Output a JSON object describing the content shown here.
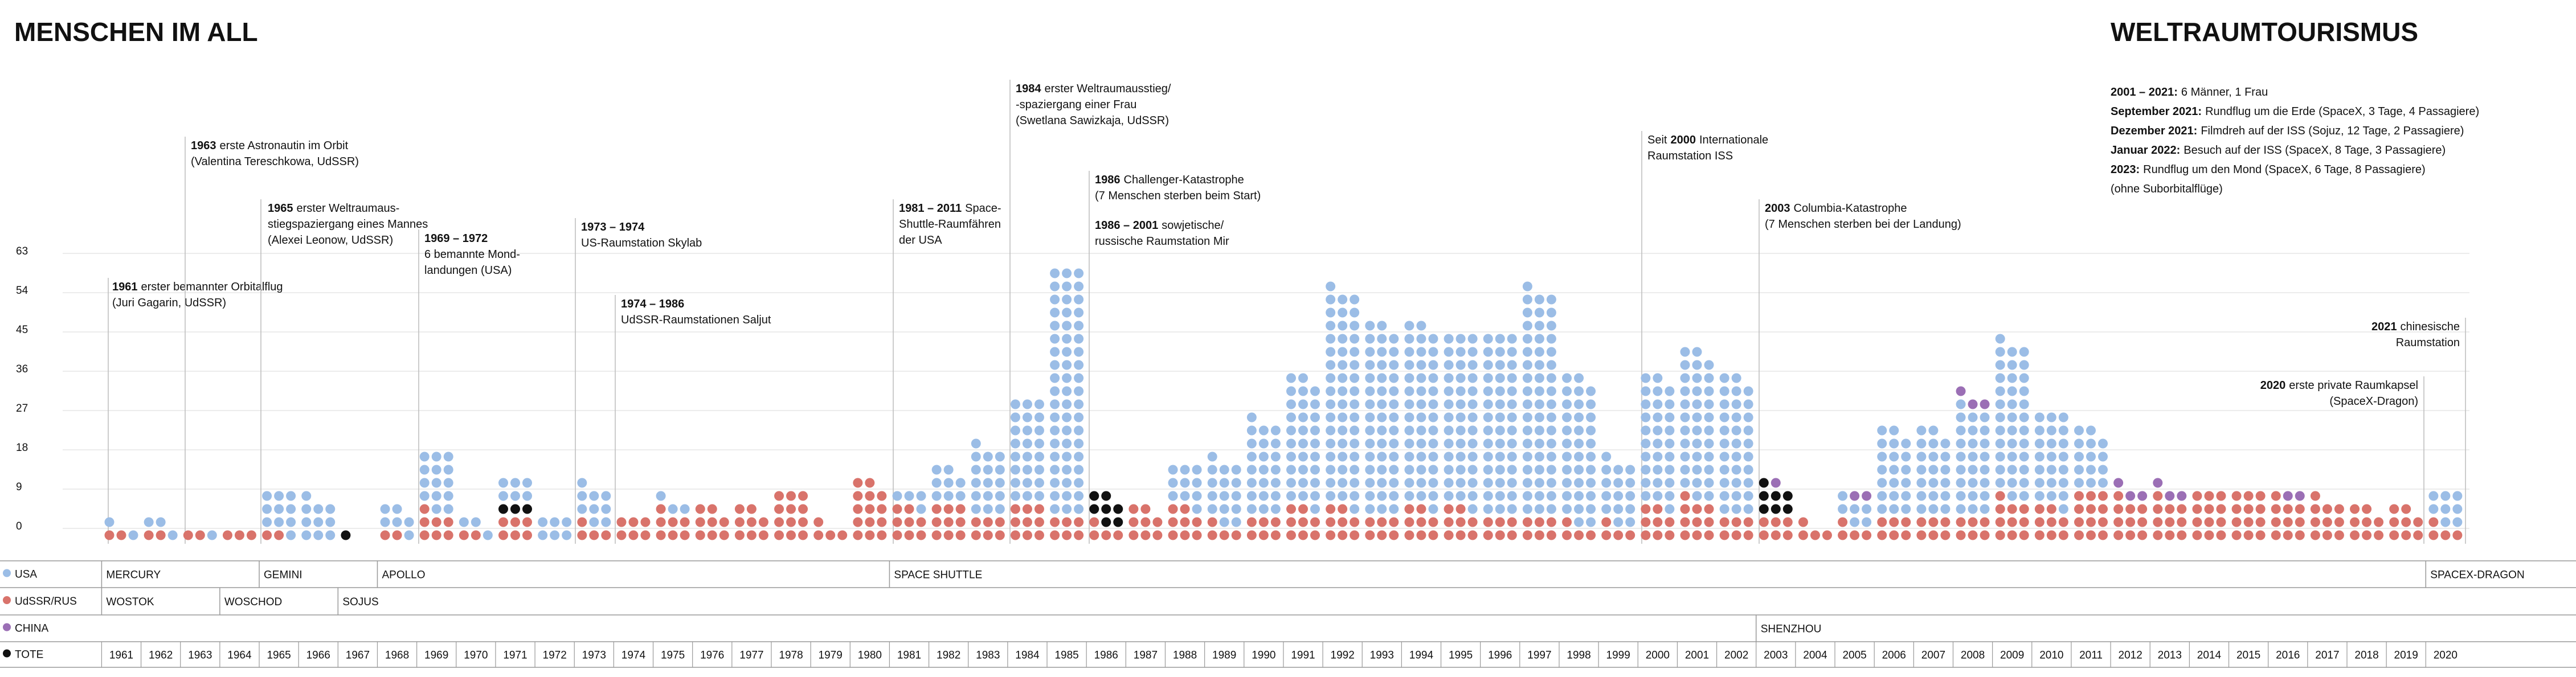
{
  "chart_data": {
    "type": "dot-stack",
    "title": "MENSCHEN IM ALL",
    "categories": [
      "1961",
      "1962",
      "1963",
      "1964",
      "1965",
      "1966",
      "1967",
      "1968",
      "1969",
      "1970",
      "1971",
      "1972",
      "1973",
      "1974",
      "1975",
      "1976",
      "1977",
      "1978",
      "1979",
      "1980",
      "1981",
      "1982",
      "1983",
      "1984",
      "1985",
      "1986",
      "1987",
      "1988",
      "1989",
      "1990",
      "1991",
      "1992",
      "1993",
      "1994",
      "1995",
      "1996",
      "1997",
      "1998",
      "1999",
      "2000",
      "2001",
      "2002",
      "2003",
      "2004",
      "2005",
      "2006",
      "2007",
      "2008",
      "2009",
      "2010",
      "2011",
      "2012",
      "2013",
      "2014",
      "2015",
      "2016",
      "2017",
      "2018",
      "2019",
      "2020"
    ],
    "ylim": [
      0,
      63
    ],
    "yticks": [
      0,
      9,
      18,
      27,
      36,
      45,
      54,
      63
    ],
    "grid": true,
    "series": [
      {
        "name": "UdSSR/RUS",
        "color": "#d9736b",
        "values": [
          2,
          2,
          2,
          3,
          2,
          0,
          0,
          2,
          7,
          2,
          6,
          0,
          4,
          6,
          7,
          8,
          8,
          12,
          4,
          14,
          8,
          9,
          6,
          9,
          6,
          4,
          8,
          8,
          4,
          6,
          8,
          8,
          6,
          8,
          8,
          6,
          6,
          4,
          4,
          8,
          10,
          6,
          6,
          4,
          4,
          6,
          6,
          6,
          10,
          8,
          12,
          10,
          10,
          12,
          12,
          10,
          10,
          8,
          8,
          4
        ]
      },
      {
        "name": "TOTE",
        "color": "#111111",
        "values": [
          0,
          0,
          0,
          0,
          0,
          0,
          1,
          0,
          0,
          0,
          3,
          0,
          0,
          0,
          0,
          0,
          0,
          0,
          0,
          0,
          0,
          0,
          0,
          0,
          0,
          7,
          0,
          0,
          0,
          0,
          0,
          0,
          0,
          0,
          0,
          0,
          0,
          0,
          0,
          0,
          0,
          0,
          7,
          0,
          0,
          0,
          0,
          0,
          0,
          0,
          0,
          0,
          0,
          0,
          0,
          0,
          0,
          0,
          0,
          0
        ]
      },
      {
        "name": "USA",
        "color": "#9bbde6",
        "values": [
          2,
          3,
          1,
          0,
          10,
          10,
          0,
          6,
          14,
          3,
          6,
          6,
          9,
          0,
          3,
          0,
          0,
          0,
          0,
          0,
          4,
          8,
          16,
          24,
          57,
          0,
          0,
          10,
          15,
          22,
          30,
          50,
          44,
          42,
          40,
          42,
          52,
          34,
          15,
          30,
          34,
          32,
          0,
          0,
          6,
          20,
          20,
          25,
          36,
          22,
          14,
          0,
          0,
          0,
          0,
          0,
          0,
          0,
          0,
          8
        ]
      },
      {
        "name": "CHINA",
        "color": "#9b6fb5",
        "values": [
          0,
          0,
          0,
          0,
          0,
          0,
          0,
          0,
          0,
          0,
          0,
          0,
          0,
          0,
          0,
          0,
          0,
          0,
          0,
          0,
          0,
          0,
          0,
          0,
          0,
          0,
          0,
          0,
          0,
          0,
          0,
          0,
          0,
          0,
          0,
          0,
          0,
          0,
          0,
          0,
          0,
          0,
          1,
          0,
          2,
          0,
          0,
          3,
          0,
          0,
          0,
          3,
          3,
          0,
          0,
          2,
          0,
          0,
          0,
          0
        ]
      }
    ],
    "legend_order": [
      2,
      0,
      3,
      1
    ],
    "programs": {
      "USA": [
        "MERCURY",
        "GEMINI",
        "APOLLO",
        "SPACE SHUTTLE",
        "SPACEX-DRAGON"
      ],
      "UdSSR/RUS": [
        "WOSTOK",
        "WOSCHOD",
        "SOJUS"
      ],
      "CHINA": [
        "SHENZHOU"
      ]
    },
    "annotations": [
      {
        "head": "1961",
        "rest": "erster bemannter Orbitalflug",
        "lines": [
          "(Juri Gagarin, UdSSR)"
        ]
      },
      {
        "head": "1963",
        "rest": "erste Astronautin im Orbit",
        "lines": [
          "(Valentina Tereschkowa, UdSSR)"
        ]
      },
      {
        "head": "1965",
        "rest": "erster Weltraumaus-",
        "lines": [
          "stiegspaziergang eines Mannes",
          "(Alexei Leonow, UdSSR)"
        ]
      },
      {
        "head": "1969 – 1972",
        "lines": [
          "6 bemannte Mond-",
          "landungen (USA)"
        ]
      },
      {
        "head": "1973 – 1974",
        "lines": [
          "US-Raumstation Skylab"
        ]
      },
      {
        "head": "1974 – 1986",
        "lines": [
          "UdSSR-Raumstationen Saljut"
        ]
      },
      {
        "head": "1981 – 2011",
        "rest": "Space-",
        "lines": [
          "Shuttle-Raumfähren",
          "der USA"
        ]
      },
      {
        "head": "1984",
        "rest": "erster Weltraumausstieg/",
        "lines": [
          "-spaziergang einer Frau",
          "(Swetlana Sawizkaja, UdSSR)"
        ]
      },
      {
        "head": "1986",
        "rest": "Challenger-Katastrophe",
        "lines": [
          "(7 Menschen sterben beim Start)"
        ]
      },
      {
        "head": "1986 – 2001",
        "rest": "sowjetische/",
        "lines": [
          "russische Raumstation Mir"
        ]
      },
      {
        "pre": "Seit",
        "head": "2000",
        "rest": "Internationale",
        "lines": [
          "Raumstation ISS"
        ]
      },
      {
        "head": "2003",
        "rest": "Columbia-Katastrophe",
        "lines": [
          "(7 Menschen sterben bei der Landung)"
        ]
      },
      {
        "head": "2021",
        "rest": "chinesische",
        "lines": [
          "Raumstation"
        ]
      },
      {
        "head": "2020",
        "rest": "erste private Raumkapsel",
        "lines": [
          "(SpaceX-Dragon)"
        ]
      }
    ],
    "tourism": {
      "title": "WELTRAUMTOURISMUS",
      "items": [
        {
          "head": "2001 – 2021:",
          "rest": "6 Männer, 1 Frau"
        },
        {
          "head": "September 2021:",
          "rest": "Rundflug um die Erde (SpaceX, 3 Tage, 4 Passagiere)"
        },
        {
          "head": "Dezember 2021:",
          "rest": "Filmdreh auf der ISS (Sojuz, 12 Tage, 2 Passagiere)"
        },
        {
          "head": "Januar 2022:",
          "rest": "Besuch auf der ISS (SpaceX, 8 Tage, 3 Passagiere)"
        },
        {
          "head": "2023:",
          "rest": "Rundflug um den Mond (SpaceX, 6 Tage, 8 Passagiere)"
        }
      ],
      "note": "(ohne Suborbitalflüge)"
    }
  }
}
